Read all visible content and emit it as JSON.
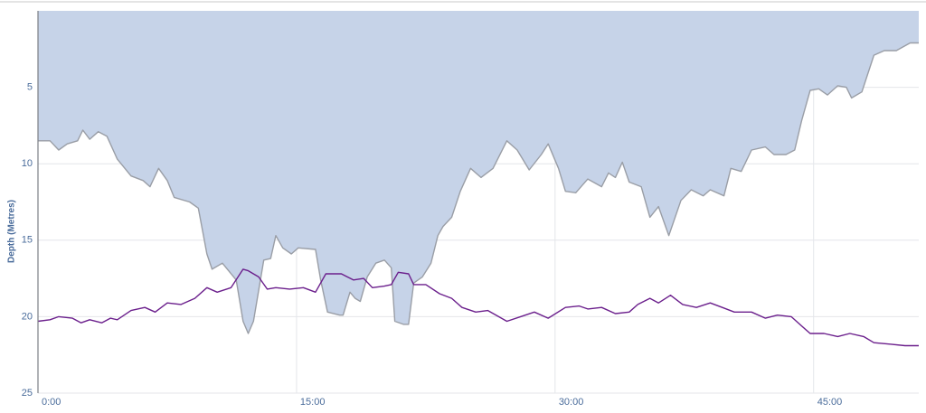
{
  "chart_data": {
    "type": "area",
    "y_label": "Depth (Metres)",
    "y_inverted": true,
    "grid": true,
    "xlim": [
      0,
      51.1
    ],
    "xticks": [
      {
        "value": 0,
        "label": "0:00"
      },
      {
        "value": 15,
        "label": "15:00"
      },
      {
        "value": 30,
        "label": "30:00"
      },
      {
        "value": 45,
        "label": "45:00"
      }
    ],
    "ylim": [
      0,
      25
    ],
    "yticks": [
      5,
      10,
      15,
      20,
      25
    ],
    "series": [
      {
        "color": "#9a9ea6",
        "fill": "#c6d3e8",
        "x": [
          0,
          0.7,
          1.2,
          1.7,
          2.3,
          2.6,
          3.0,
          3.5,
          4.0,
          4.6,
          5.4,
          6.1,
          6.5,
          7.0,
          7.5,
          7.9,
          8.8,
          9.3,
          9.8,
          10.1,
          10.7,
          11.5,
          11.9,
          12.2,
          12.5,
          13.1,
          13.5,
          13.8,
          14.2,
          14.7,
          15.1,
          16.1,
          16.4,
          16.8,
          17.5,
          17.7,
          18.1,
          18.4,
          18.7,
          19.1,
          19.6,
          20.1,
          20.5,
          20.7,
          21.2,
          21.5,
          21.8,
          22.3,
          22.8,
          23.2,
          23.5,
          24.0,
          24.5,
          25.1,
          25.7,
          26.4,
          27.2,
          27.8,
          28.5,
          29.2,
          29.6,
          30.2,
          30.6,
          31.2,
          31.9,
          32.7,
          33.1,
          33.5,
          33.9,
          34.3,
          35.0,
          35.5,
          36.0,
          36.6,
          37.3,
          37.9,
          38.6,
          39.0,
          39.8,
          40.2,
          40.8,
          41.4,
          42.2,
          42.7,
          43.4,
          43.9,
          44.3,
          44.8,
          45.3,
          45.8,
          46.4,
          46.9,
          47.2,
          47.8,
          48.5,
          49.1,
          49.8,
          50.6,
          51.1
        ],
        "values": [
          8.5,
          8.5,
          9.1,
          8.7,
          8.5,
          7.8,
          8.4,
          7.9,
          8.2,
          9.7,
          10.8,
          11.1,
          11.5,
          10.3,
          11.1,
          12.2,
          12.5,
          12.9,
          15.9,
          16.9,
          16.5,
          17.6,
          20.3,
          21.1,
          20.3,
          16.3,
          16.2,
          14.7,
          15.5,
          15.9,
          15.5,
          15.6,
          17.6,
          19.7,
          19.9,
          19.9,
          18.4,
          18.8,
          19.0,
          17.4,
          16.5,
          16.3,
          16.8,
          20.3,
          20.5,
          20.5,
          17.8,
          17.4,
          16.5,
          14.7,
          14.1,
          13.5,
          11.8,
          10.3,
          10.9,
          10.3,
          8.5,
          9.1,
          10.4,
          9.4,
          8.7,
          10.3,
          11.8,
          11.9,
          11.0,
          11.5,
          10.6,
          10.9,
          9.9,
          11.2,
          11.5,
          13.5,
          12.8,
          14.7,
          12.4,
          11.7,
          12.1,
          11.7,
          12.1,
          10.3,
          10.5,
          9.1,
          8.9,
          9.4,
          9.4,
          9.1,
          7.2,
          5.2,
          5.1,
          5.5,
          4.9,
          5.0,
          5.7,
          5.3,
          2.9,
          2.6,
          2.6,
          2.1,
          2.1
        ]
      },
      {
        "color": "#6b1f8c",
        "x": [
          0,
          0.7,
          1.2,
          2.0,
          2.5,
          3.0,
          3.7,
          4.2,
          4.6,
          5.4,
          6.2,
          6.8,
          7.5,
          8.3,
          9.1,
          9.8,
          10.4,
          11.2,
          11.9,
          12.2,
          12.8,
          13.3,
          13.8,
          14.6,
          15.4,
          16.1,
          16.7,
          17.6,
          18.3,
          18.9,
          19.4,
          20.1,
          20.5,
          20.9,
          21.5,
          21.8,
          22.5,
          23.3,
          24.0,
          24.6,
          25.4,
          26.1,
          27.2,
          28.0,
          28.8,
          29.6,
          30.6,
          31.4,
          31.9,
          32.7,
          33.5,
          34.3,
          34.8,
          35.5,
          36.0,
          36.7,
          37.4,
          38.2,
          39.0,
          39.7,
          40.4,
          41.4,
          42.2,
          42.9,
          43.7,
          44.3,
          44.8,
          45.6,
          46.4,
          47.1,
          47.9,
          48.5,
          49.5,
          50.3,
          51.1
        ],
        "values": [
          20.3,
          20.2,
          20.0,
          20.1,
          20.4,
          20.2,
          20.4,
          20.1,
          20.2,
          19.6,
          19.4,
          19.7,
          19.1,
          19.2,
          18.8,
          18.1,
          18.4,
          18.1,
          16.9,
          17.0,
          17.4,
          18.2,
          18.1,
          18.2,
          18.1,
          18.4,
          17.2,
          17.2,
          17.6,
          17.5,
          18.1,
          18.0,
          17.9,
          17.1,
          17.2,
          17.9,
          17.9,
          18.5,
          18.8,
          19.4,
          19.7,
          19.6,
          20.3,
          20.0,
          19.7,
          20.1,
          19.4,
          19.3,
          19.5,
          19.4,
          19.8,
          19.7,
          19.2,
          18.8,
          19.1,
          18.6,
          19.2,
          19.4,
          19.1,
          19.4,
          19.7,
          19.7,
          20.1,
          19.9,
          20.0,
          20.6,
          21.1,
          21.1,
          21.3,
          21.1,
          21.3,
          21.7,
          21.8,
          21.9,
          21.9
        ]
      }
    ]
  }
}
